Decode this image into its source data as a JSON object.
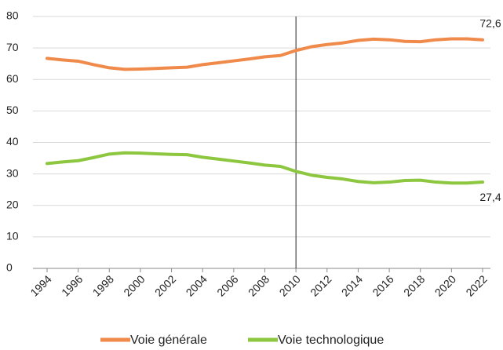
{
  "chart_data": {
    "type": "line",
    "x": [
      1994,
      1995,
      1996,
      1997,
      1998,
      1999,
      2000,
      2001,
      2002,
      2003,
      2004,
      2005,
      2006,
      2007,
      2008,
      2009,
      2010,
      2011,
      2012,
      2013,
      2014,
      2015,
      2016,
      2017,
      2018,
      2019,
      2020,
      2021,
      2022
    ],
    "series": [
      {
        "name": "Voie générale",
        "color": "#f08a4b",
        "values": [
          66.7,
          66.2,
          65.8,
          64.7,
          63.7,
          63.2,
          63.3,
          63.5,
          63.7,
          63.9,
          64.7,
          65.3,
          65.9,
          66.5,
          67.2,
          67.6,
          69.2,
          70.4,
          71.1,
          71.6,
          72.4,
          72.8,
          72.6,
          72.1,
          72.0,
          72.6,
          72.9,
          72.9,
          72.6
        ],
        "value_labels": [
          null,
          null,
          null,
          null,
          null,
          null,
          null,
          null,
          null,
          null,
          null,
          null,
          null,
          null,
          null,
          null,
          null,
          null,
          null,
          null,
          null,
          null,
          null,
          null,
          null,
          null,
          null,
          null,
          "72,6"
        ]
      },
      {
        "name": "Voie technologique",
        "color": "#8dc63f",
        "values": [
          33.3,
          33.8,
          34.2,
          35.2,
          36.3,
          36.7,
          36.6,
          36.4,
          36.2,
          36.1,
          35.3,
          34.7,
          34.1,
          33.5,
          32.8,
          32.4,
          30.8,
          29.6,
          28.9,
          28.4,
          27.6,
          27.2,
          27.4,
          27.9,
          28.0,
          27.4,
          27.1,
          27.1,
          27.4
        ],
        "value_labels": [
          null,
          null,
          null,
          null,
          null,
          null,
          null,
          null,
          null,
          null,
          null,
          null,
          null,
          null,
          null,
          null,
          null,
          null,
          null,
          null,
          null,
          null,
          null,
          null,
          null,
          null,
          null,
          null,
          "27,4"
        ]
      }
    ],
    "xlim": [
      1994,
      2022
    ],
    "xticks": [
      1994,
      1996,
      1998,
      2000,
      2002,
      2004,
      2006,
      2008,
      2010,
      2012,
      2014,
      2016,
      2018,
      2020,
      2022
    ],
    "ylim": [
      0,
      80
    ],
    "yticks": [
      0,
      10,
      20,
      30,
      40,
      50,
      60,
      70,
      80
    ],
    "vline": 2010,
    "grid": true
  }
}
